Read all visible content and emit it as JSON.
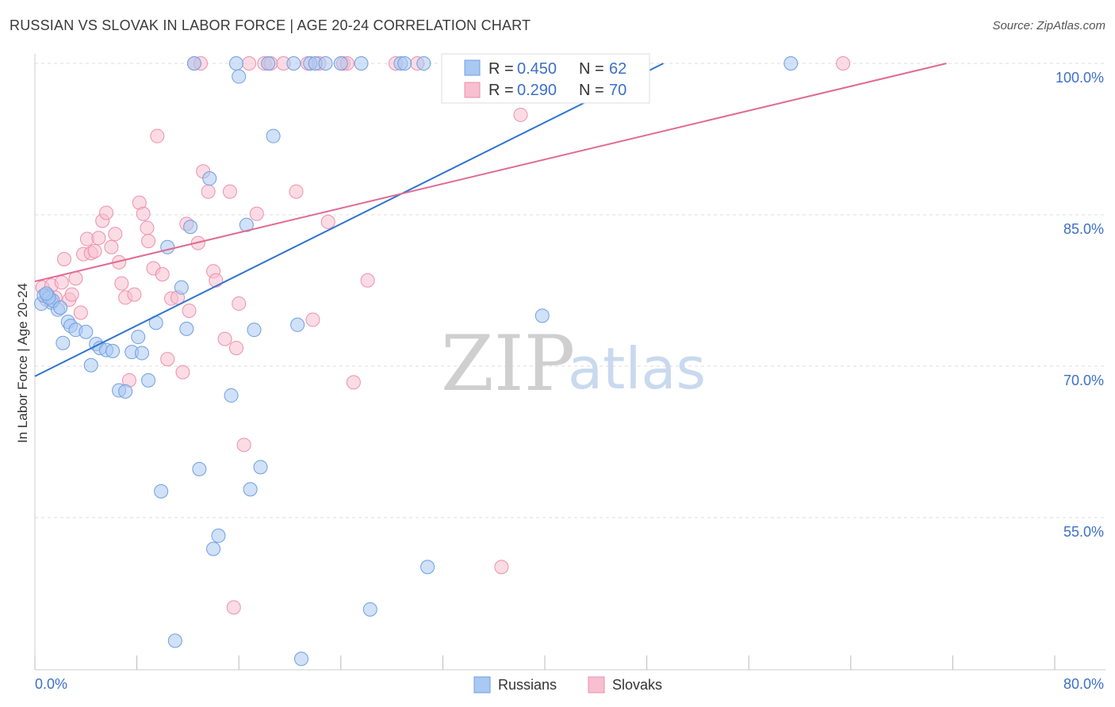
{
  "header": {
    "title": "RUSSIAN VS SLOVAK IN LABOR FORCE | AGE 20-24 CORRELATION CHART",
    "source": "Source: ZipAtlas.com"
  },
  "colors": {
    "russians_fill": "#a9c8f2",
    "russians_stroke": "#6f9fe0",
    "russians_line": "#2f74d0",
    "slovaks_fill": "#f7bfd0",
    "slovaks_stroke": "#ee8fad",
    "slovaks_line": "#e06a93",
    "grid": "#dddddd",
    "axis_text": "#3d6fc9"
  },
  "legend": {
    "row1": {
      "r_label": "R = ",
      "r_value": "0.450",
      "n_label": "N = ",
      "n_value": "62"
    },
    "row2": {
      "r_label": "R = ",
      "r_value": "0.290",
      "n_label": "N = ",
      "n_value": "70"
    }
  },
  "chart_data": {
    "type": "scatter",
    "title": "RUSSIAN VS SLOVAK IN LABOR FORCE | AGE 20-24 CORRELATION CHART",
    "xlabel": "",
    "ylabel": "In Labor Force | Age 20-24",
    "xlim": [
      0,
      80
    ],
    "ylim": [
      40,
      101
    ],
    "x_tick_labels": [
      "0.0%",
      "80.0%"
    ],
    "y_ticks": [
      55,
      70,
      85,
      100
    ],
    "y_tick_labels": [
      "55.0%",
      "70.0%",
      "85.0%",
      "100.0%"
    ],
    "watermark": {
      "zip": "ZIP",
      "atlas": "atlas"
    },
    "series": [
      {
        "name": "Russians",
        "R": 0.45,
        "N": 62,
        "trend": {
          "x0": 0,
          "y0": 69.0,
          "x1": 49.3,
          "y1": 100.0
        },
        "points": [
          [
            1.0,
            77.0
          ],
          [
            1.3,
            76.3
          ],
          [
            1.8,
            75.6
          ],
          [
            2.2,
            72.3
          ],
          [
            2.6,
            74.4
          ],
          [
            2.8,
            74.0
          ],
          [
            3.2,
            73.6
          ],
          [
            4.0,
            73.4
          ],
          [
            4.4,
            70.1
          ],
          [
            4.8,
            72.2
          ],
          [
            5.1,
            71.8
          ],
          [
            5.6,
            71.6
          ],
          [
            6.1,
            71.5
          ],
          [
            6.6,
            67.6
          ],
          [
            7.1,
            67.5
          ],
          [
            7.6,
            71.4
          ],
          [
            8.1,
            72.9
          ],
          [
            8.4,
            71.3
          ],
          [
            8.9,
            68.6
          ],
          [
            9.5,
            74.3
          ],
          [
            9.9,
            57.6
          ],
          [
            10.4,
            81.8
          ],
          [
            11.0,
            42.8
          ],
          [
            11.5,
            77.8
          ],
          [
            11.9,
            73.7
          ],
          [
            12.2,
            83.8
          ],
          [
            12.9,
            59.8
          ],
          [
            13.7,
            88.6
          ],
          [
            14.0,
            51.9
          ],
          [
            14.4,
            53.2
          ],
          [
            15.4,
            67.1
          ],
          [
            15.8,
            100.0
          ],
          [
            16.0,
            98.7
          ],
          [
            16.6,
            84.0
          ],
          [
            16.9,
            57.8
          ],
          [
            17.2,
            73.6
          ],
          [
            17.7,
            60.0
          ],
          [
            18.3,
            100.0
          ],
          [
            18.7,
            92.8
          ],
          [
            20.3,
            100.0
          ],
          [
            20.6,
            74.1
          ],
          [
            20.9,
            41.0
          ],
          [
            21.6,
            100.0
          ],
          [
            22.0,
            100.0
          ],
          [
            22.8,
            100.0
          ],
          [
            24.0,
            100.0
          ],
          [
            25.6,
            100.0
          ],
          [
            26.3,
            45.9
          ],
          [
            28.7,
            100.0
          ],
          [
            29.0,
            100.0
          ],
          [
            30.5,
            100.0
          ],
          [
            30.8,
            50.1
          ],
          [
            33.0,
            100.0
          ],
          [
            39.8,
            75.0
          ],
          [
            0.5,
            76.2
          ],
          [
            0.7,
            77.0
          ],
          [
            1.4,
            76.5
          ],
          [
            1.1,
            76.8
          ],
          [
            2.0,
            75.8
          ],
          [
            0.9,
            77.2
          ],
          [
            12.5,
            100.0
          ],
          [
            59.3,
            100.0
          ]
        ]
      },
      {
        "name": "Slovaks",
        "R": 0.29,
        "N": 70,
        "trend": {
          "x0": 0,
          "y0": 78.4,
          "x1": 71.5,
          "y1": 100.0
        },
        "points": [
          [
            0.6,
            77.8
          ],
          [
            0.9,
            76.6
          ],
          [
            1.3,
            78.0
          ],
          [
            1.6,
            76.8
          ],
          [
            2.1,
            78.3
          ],
          [
            2.3,
            80.6
          ],
          [
            2.7,
            76.6
          ],
          [
            2.9,
            77.1
          ],
          [
            3.2,
            78.7
          ],
          [
            3.6,
            75.3
          ],
          [
            3.8,
            81.1
          ],
          [
            4.1,
            82.6
          ],
          [
            4.4,
            81.2
          ],
          [
            4.7,
            81.4
          ],
          [
            5.0,
            82.7
          ],
          [
            5.3,
            84.4
          ],
          [
            5.6,
            85.2
          ],
          [
            6.0,
            81.8
          ],
          [
            6.3,
            83.1
          ],
          [
            6.6,
            80.3
          ],
          [
            6.8,
            78.2
          ],
          [
            7.1,
            76.8
          ],
          [
            7.4,
            68.6
          ],
          [
            7.8,
            77.1
          ],
          [
            8.2,
            86.2
          ],
          [
            8.5,
            85.1
          ],
          [
            8.8,
            83.7
          ],
          [
            8.9,
            82.4
          ],
          [
            9.3,
            79.7
          ],
          [
            9.6,
            92.8
          ],
          [
            10.0,
            79.1
          ],
          [
            10.4,
            70.7
          ],
          [
            10.7,
            76.7
          ],
          [
            11.2,
            76.8
          ],
          [
            11.6,
            69.4
          ],
          [
            11.9,
            84.1
          ],
          [
            12.1,
            75.5
          ],
          [
            12.5,
            100.0
          ],
          [
            12.8,
            82.2
          ],
          [
            13.2,
            89.3
          ],
          [
            13.6,
            87.3
          ],
          [
            14.0,
            79.4
          ],
          [
            14.2,
            78.5
          ],
          [
            14.9,
            72.7
          ],
          [
            15.3,
            87.3
          ],
          [
            15.6,
            46.1
          ],
          [
            15.8,
            71.8
          ],
          [
            16.0,
            76.2
          ],
          [
            16.4,
            62.2
          ],
          [
            17.4,
            85.1
          ],
          [
            18.0,
            100.0
          ],
          [
            18.5,
            100.0
          ],
          [
            19.5,
            100.0
          ],
          [
            20.5,
            87.3
          ],
          [
            21.4,
            100.0
          ],
          [
            21.8,
            74.6
          ],
          [
            23.0,
            84.3
          ],
          [
            24.2,
            100.0
          ],
          [
            24.5,
            100.0
          ],
          [
            25.0,
            68.4
          ],
          [
            26.1,
            78.5
          ],
          [
            28.3,
            100.0
          ],
          [
            30.0,
            100.0
          ],
          [
            34.6,
            100.0
          ],
          [
            36.6,
            50.1
          ],
          [
            38.1,
            94.9
          ],
          [
            63.4,
            100.0
          ],
          [
            13.0,
            100.0
          ],
          [
            16.8,
            100.0
          ],
          [
            22.3,
            100.0
          ]
        ]
      }
    ]
  },
  "bottom_legend": {
    "russians": "Russians",
    "slovaks": "Slovaks"
  }
}
